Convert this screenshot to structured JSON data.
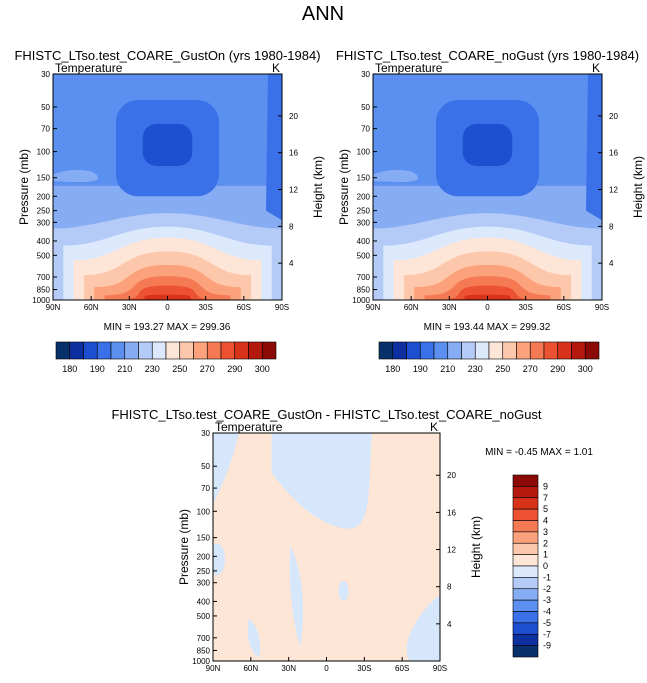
{
  "page_title": "ANN",
  "colors": {
    "abs_scale": [
      "#08306b",
      "#0d2fa0",
      "#1f4fd1",
      "#3a70e8",
      "#5b8ff0",
      "#86acf4",
      "#b4cbf8",
      "#dce8fb",
      "#fde6d8",
      "#fcc7aa",
      "#fba27c",
      "#f57a54",
      "#ec5232",
      "#d8321b",
      "#b5190d",
      "#8b0a06"
    ],
    "diff_scale": [
      "#08306b",
      "#0d2fa0",
      "#1f4fd1",
      "#3a70e8",
      "#5b8ff0",
      "#86acf4",
      "#b4cbf8",
      "#dce8fb",
      "#fde6d8",
      "#fcc7aa",
      "#fba27c",
      "#f57a54",
      "#ec5232",
      "#d8321b",
      "#b5190d",
      "#8b0a06"
    ],
    "diff_neg_fill": "#d6e6fb",
    "diff_pos_fill": "#fde6d6"
  },
  "chart_data": [
    {
      "type": "heatmap",
      "title": "FHISTC_LTso.test_COARE_GustOn (yrs 1980-1984)",
      "left_label": "Temperature",
      "right_label": "K",
      "ylabel": "Pressure (mb)",
      "y2label": "Height (km)",
      "x_ticks": [
        "90N",
        "60N",
        "30N",
        "0",
        "30S",
        "60S",
        "90S"
      ],
      "y_ticks": [
        30,
        50,
        70,
        100,
        150,
        200,
        250,
        300,
        400,
        500,
        700,
        850,
        1000
      ],
      "y2_ticks": [
        20,
        16,
        12,
        8,
        4
      ],
      "ylim": [
        30,
        1000
      ],
      "xlim": [
        "90N",
        "90S"
      ],
      "stats": "MIN = 193.27   MAX = 299.36",
      "colorbar_ticks": [
        "180",
        "190",
        "210",
        "230",
        "250",
        "270",
        "290",
        "300"
      ]
    },
    {
      "type": "heatmap",
      "title": "FHISTC_LTso.test_COARE_noGust (yrs 1980-1984)",
      "left_label": "Temperature",
      "right_label": "K",
      "ylabel": "Pressure (mb)",
      "y2label": "Height (km)",
      "x_ticks": [
        "90N",
        "60N",
        "30N",
        "0",
        "30S",
        "60S",
        "90S"
      ],
      "y_ticks": [
        30,
        50,
        70,
        100,
        150,
        200,
        250,
        300,
        400,
        500,
        700,
        850,
        1000
      ],
      "y2_ticks": [
        20,
        16,
        12,
        8,
        4
      ],
      "ylim": [
        30,
        1000
      ],
      "xlim": [
        "90N",
        "90S"
      ],
      "stats": "MIN = 193.44   MAX = 299.32",
      "colorbar_ticks": [
        "180",
        "190",
        "210",
        "230",
        "250",
        "270",
        "290",
        "300"
      ]
    },
    {
      "type": "heatmap",
      "title": "FHISTC_LTso.test_COARE_GustOn - FHISTC_LTso.test_COARE_noGust",
      "left_label": "Temperature",
      "right_label": "K",
      "ylabel": "Pressure (mb)",
      "y2label": "Height (km)",
      "x_ticks": [
        "90N",
        "60N",
        "30N",
        "0",
        "30S",
        "60S",
        "90S"
      ],
      "y_ticks": [
        30,
        50,
        70,
        100,
        150,
        200,
        250,
        300,
        400,
        500,
        700,
        850,
        1000
      ],
      "y2_ticks": [
        20,
        16,
        12,
        8,
        4
      ],
      "ylim": [
        30,
        1000
      ],
      "xlim": [
        "90N",
        "90S"
      ],
      "stats": "MIN =  -0.45   MAX =   1.01",
      "colorbar_ticks": [
        "9",
        "7",
        "5",
        "4",
        "3",
        "2",
        "1",
        "0",
        "-1",
        "-2",
        "-3",
        "-4",
        "-5",
        "-7",
        "-9"
      ]
    }
  ]
}
